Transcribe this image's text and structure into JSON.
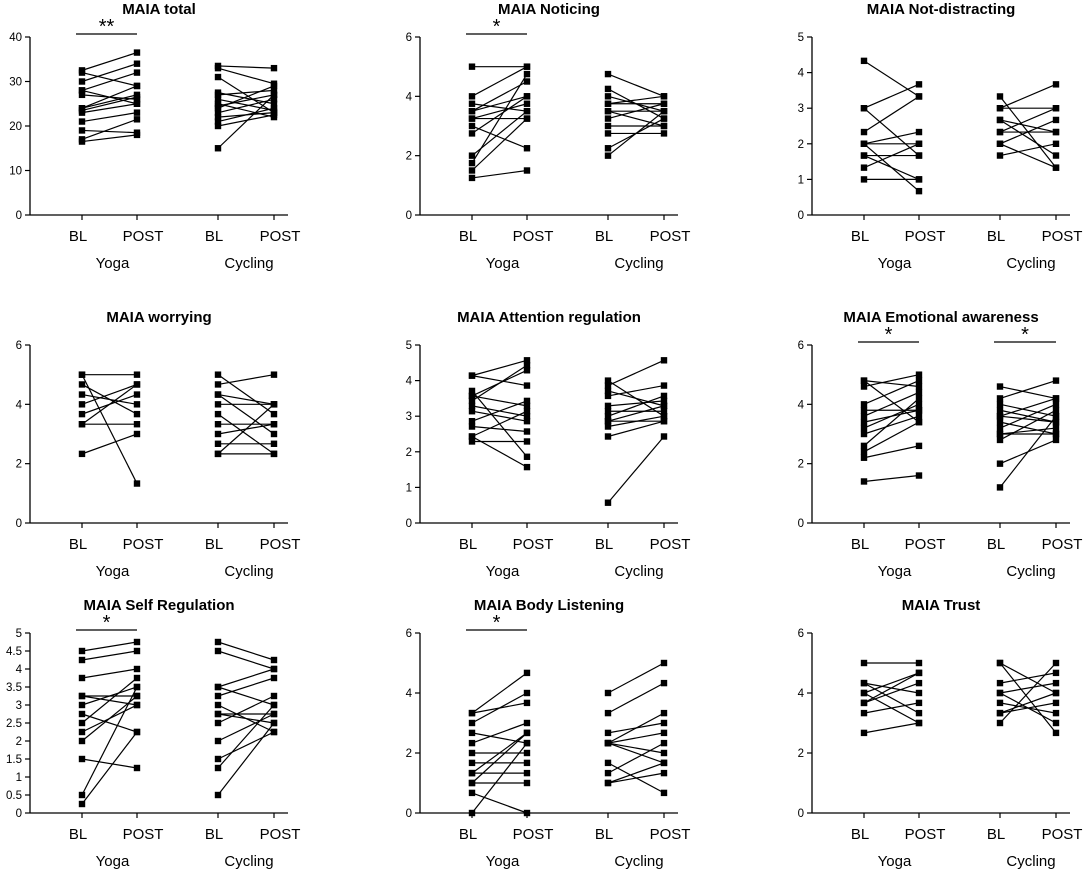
{
  "figure": {
    "description_free": true
  },
  "colors": {
    "ink": "#000000",
    "background": "#ffffff"
  },
  "chart_data": [
    {
      "type": "line",
      "title": "MAIA total",
      "ylim": [
        0,
        40
      ],
      "yticks": [
        0,
        10,
        20,
        30,
        40
      ],
      "groups": [
        "Yoga",
        "Cycling"
      ],
      "timepoints": [
        "BL",
        "POST"
      ],
      "pairs": [
        [
          [
            16.5,
            18
          ],
          [
            17,
            21.5
          ],
          [
            19,
            18.5
          ],
          [
            21,
            23
          ],
          [
            23,
            25
          ],
          [
            24,
            27
          ],
          [
            24,
            29
          ],
          [
            27,
            26
          ],
          [
            28,
            32
          ],
          [
            28,
            25
          ],
          [
            30,
            34
          ],
          [
            32.5,
            36.5
          ],
          [
            32,
            29
          ],
          [
            23.5,
            26.5
          ]
        ],
        [
          [
            15,
            27
          ],
          [
            20,
            22.5
          ],
          [
            21,
            24
          ],
          [
            22,
            23
          ],
          [
            23,
            26
          ],
          [
            24,
            29
          ],
          [
            24.5,
            27
          ],
          [
            26,
            23.5
          ],
          [
            27,
            28
          ],
          [
            27.5,
            25
          ],
          [
            31,
            23
          ],
          [
            33.5,
            33
          ],
          [
            33,
            29.5
          ],
          [
            25,
            22
          ]
        ]
      ],
      "significance": [
        {
          "group": "Yoga",
          "label": "**"
        }
      ]
    },
    {
      "type": "line",
      "title": "MAIA Noticing",
      "ylim": [
        0,
        6
      ],
      "yticks": [
        0,
        2,
        4,
        6
      ],
      "groups": [
        "Yoga",
        "Cycling"
      ],
      "timepoints": [
        "BL",
        "POST"
      ],
      "pairs": [
        [
          [
            1.25,
            1.5
          ],
          [
            1.5,
            3.25
          ],
          [
            1.75,
            4.75
          ],
          [
            2,
            3.5
          ],
          [
            2.75,
            4
          ],
          [
            3,
            2.25
          ],
          [
            3.25,
            3.75
          ],
          [
            3.5,
            4.5
          ],
          [
            3.75,
            3.5
          ],
          [
            4,
            5
          ],
          [
            5,
            5
          ],
          [
            3.25,
            3.25
          ],
          [
            3.5,
            4
          ]
        ],
        [
          [
            2,
            3.5
          ],
          [
            2.25,
            3.25
          ],
          [
            2.75,
            2.75
          ],
          [
            3.25,
            3.75
          ],
          [
            3.5,
            3
          ],
          [
            3.75,
            4
          ],
          [
            4,
            3.5
          ],
          [
            4.25,
            3.25
          ],
          [
            4.75,
            4
          ],
          [
            3.5,
            3.5
          ],
          [
            3,
            3
          ],
          [
            3.75,
            3.75
          ]
        ]
      ],
      "significance": [
        {
          "group": "Yoga",
          "label": "*"
        }
      ]
    },
    {
      "type": "line",
      "title": "MAIA Not-distracting",
      "ylim": [
        0,
        5
      ],
      "yticks": [
        0,
        1,
        2,
        3,
        4,
        5
      ],
      "groups": [
        "Yoga",
        "Cycling"
      ],
      "timepoints": [
        "BL",
        "POST"
      ],
      "pairs": [
        [
          [
            1,
            1
          ],
          [
            1.33,
            2
          ],
          [
            1.67,
            1.67
          ],
          [
            2,
            2.33
          ],
          [
            2,
            0.67
          ],
          [
            2.33,
            3.33
          ],
          [
            3,
            3.67
          ],
          [
            3,
            1.67
          ],
          [
            4.33,
            3.33
          ],
          [
            1.67,
            1
          ],
          [
            2,
            2
          ]
        ],
        [
          [
            1.67,
            2
          ],
          [
            2,
            1.33
          ],
          [
            2,
            2.67
          ],
          [
            2.33,
            3
          ],
          [
            2.67,
            2.33
          ],
          [
            2.67,
            1.67
          ],
          [
            3,
            3.67
          ],
          [
            3.33,
            1.33
          ],
          [
            3,
            3
          ],
          [
            2.33,
            2.33
          ]
        ]
      ],
      "significance": []
    },
    {
      "type": "line",
      "title": "MAIA worrying",
      "ylim": [
        0,
        6
      ],
      "yticks": [
        0,
        2,
        4,
        6
      ],
      "groups": [
        "Yoga",
        "Cycling"
      ],
      "timepoints": [
        "BL",
        "POST"
      ],
      "pairs": [
        [
          [
            2.33,
            3
          ],
          [
            3.33,
            3.33
          ],
          [
            3.67,
            4.33
          ],
          [
            4,
            4.67
          ],
          [
            4.33,
            4
          ],
          [
            5,
            1.33
          ],
          [
            5,
            5
          ],
          [
            4.67,
            3.67
          ],
          [
            3.33,
            4.67
          ]
        ],
        [
          [
            2.33,
            2.33
          ],
          [
            2.33,
            4
          ],
          [
            2.67,
            2.67
          ],
          [
            3,
            3.33
          ],
          [
            3.33,
            3.33
          ],
          [
            3.67,
            2.33
          ],
          [
            4,
            4
          ],
          [
            4.33,
            3
          ],
          [
            4.67,
            5
          ],
          [
            5,
            3.67
          ],
          [
            4.33,
            4
          ]
        ]
      ],
      "significance": []
    },
    {
      "type": "line",
      "title": "MAIA Attention regulation",
      "ylim": [
        0,
        5
      ],
      "yticks": [
        0,
        1,
        2,
        3,
        4,
        5
      ],
      "groups": [
        "Yoga",
        "Cycling"
      ],
      "timepoints": [
        "BL",
        "POST"
      ],
      "pairs": [
        [
          [
            2.29,
            2.29
          ],
          [
            2.43,
            1.57
          ],
          [
            2.71,
            2.57
          ],
          [
            2.86,
            3.43
          ],
          [
            3.14,
            2.86
          ],
          [
            3.29,
            3
          ],
          [
            3.43,
            4.43
          ],
          [
            3.57,
            3.29
          ],
          [
            3.71,
            1.86
          ],
          [
            4.14,
            4.57
          ],
          [
            4.14,
            3.86
          ],
          [
            2.43,
            3.14
          ],
          [
            3.57,
            4.29
          ]
        ],
        [
          [
            0.57,
            2.43
          ],
          [
            2.43,
            2.86
          ],
          [
            2.71,
            3
          ],
          [
            2.86,
            3.29
          ],
          [
            3,
            3.57
          ],
          [
            3.14,
            3.14
          ],
          [
            3.29,
            3.43
          ],
          [
            3.57,
            3.86
          ],
          [
            3.86,
            4.57
          ],
          [
            4,
            3
          ],
          [
            3.71,
            3.29
          ],
          [
            2.86,
            2.86
          ]
        ]
      ],
      "significance": []
    },
    {
      "type": "line",
      "title": "MAIA Emotional awareness",
      "ylim": [
        0,
        6
      ],
      "yticks": [
        0,
        2,
        4,
        6
      ],
      "groups": [
        "Yoga",
        "Cycling"
      ],
      "timepoints": [
        "BL",
        "POST"
      ],
      "pairs": [
        [
          [
            1.4,
            1.6
          ],
          [
            2.2,
            2.6
          ],
          [
            2.4,
            3.4
          ],
          [
            2.6,
            4.2
          ],
          [
            3,
            3.6
          ],
          [
            3.4,
            3.8
          ],
          [
            3.6,
            4.4
          ],
          [
            3.8,
            3.8
          ],
          [
            4,
            4.8
          ],
          [
            4.6,
            5
          ],
          [
            4.8,
            4.6
          ],
          [
            4.8,
            3.4
          ],
          [
            3.2,
            4
          ]
        ],
        [
          [
            1.2,
            3.6
          ],
          [
            2,
            2.8
          ],
          [
            2.8,
            3.8
          ],
          [
            3,
            3.2
          ],
          [
            3.2,
            4
          ],
          [
            3.4,
            3
          ],
          [
            3.6,
            4.2
          ],
          [
            3.8,
            3.4
          ],
          [
            4,
            3.6
          ],
          [
            4.2,
            4.8
          ],
          [
            4.6,
            4.2
          ],
          [
            3.6,
            3.4
          ],
          [
            3,
            3
          ]
        ]
      ],
      "significance": [
        {
          "group": "Yoga",
          "label": "*"
        },
        {
          "group": "Cycling",
          "label": "*"
        }
      ]
    },
    {
      "type": "line",
      "title": "MAIA Self Regulation",
      "ylim": [
        0,
        5
      ],
      "yticks": [
        0,
        0.5,
        1,
        1.5,
        2,
        2.5,
        3,
        3.5,
        4,
        4.5,
        5
      ],
      "groups": [
        "Yoga",
        "Cycling"
      ],
      "timepoints": [
        "BL",
        "POST"
      ],
      "pairs": [
        [
          [
            0.25,
            2.25
          ],
          [
            0.5,
            3.5
          ],
          [
            1.5,
            1.25
          ],
          [
            2,
            3.25
          ],
          [
            2.25,
            3
          ],
          [
            2.5,
            3.75
          ],
          [
            2.75,
            2.25
          ],
          [
            3,
            3.5
          ],
          [
            3.25,
            3.25
          ],
          [
            3.75,
            4
          ],
          [
            4.25,
            4.5
          ],
          [
            4.5,
            4.75
          ],
          [
            3.25,
            3
          ]
        ],
        [
          [
            0.5,
            2.5
          ],
          [
            1.25,
            3
          ],
          [
            1.5,
            2.25
          ],
          [
            2,
            2.75
          ],
          [
            2.5,
            3.25
          ],
          [
            2.75,
            2.5
          ],
          [
            3,
            2.25
          ],
          [
            3.25,
            3.75
          ],
          [
            3.5,
            4
          ],
          [
            3.5,
            3
          ],
          [
            4.5,
            4
          ],
          [
            4.75,
            4.25
          ],
          [
            2.75,
            2.75
          ]
        ]
      ],
      "significance": [
        {
          "group": "Yoga",
          "label": "*"
        }
      ]
    },
    {
      "type": "line",
      "title": "MAIA Body Listening",
      "ylim": [
        0,
        6
      ],
      "yticks": [
        0,
        2,
        4,
        6
      ],
      "groups": [
        "Yoga",
        "Cycling"
      ],
      "timepoints": [
        "BL",
        "POST"
      ],
      "pairs": [
        [
          [
            0,
            2.33
          ],
          [
            0.67,
            0
          ],
          [
            1,
            1
          ],
          [
            1,
            2.67
          ],
          [
            1.33,
            1.33
          ],
          [
            1.67,
            1.67
          ],
          [
            2,
            2
          ],
          [
            2.33,
            3
          ],
          [
            2.67,
            2.33
          ],
          [
            3.33,
            4.67
          ],
          [
            3.33,
            3.67
          ],
          [
            3,
            4
          ],
          [
            1.33,
            2.67
          ]
        ],
        [
          [
            1,
            1.33
          ],
          [
            1.33,
            2.33
          ],
          [
            1.67,
            0.67
          ],
          [
            2.33,
            3.33
          ],
          [
            2.33,
            2
          ],
          [
            2.33,
            1.67
          ],
          [
            2.67,
            3
          ],
          [
            3.33,
            4.33
          ],
          [
            4,
            5
          ],
          [
            2.33,
            2.67
          ],
          [
            1,
            1.67
          ]
        ]
      ],
      "significance": [
        {
          "group": "Yoga",
          "label": "*"
        }
      ]
    },
    {
      "type": "line",
      "title": "MAIA Trust",
      "ylim": [
        0,
        6
      ],
      "yticks": [
        0,
        2,
        4,
        6
      ],
      "groups": [
        "Yoga",
        "Cycling"
      ],
      "timepoints": [
        "BL",
        "POST"
      ],
      "pairs": [
        [
          [
            2.67,
            3
          ],
          [
            3.33,
            3.67
          ],
          [
            3.67,
            4.33
          ],
          [
            4,
            4.67
          ],
          [
            4.33,
            4
          ],
          [
            5,
            5
          ],
          [
            4.33,
            3.33
          ],
          [
            3.67,
            4.67
          ],
          [
            4,
            3
          ]
        ],
        [
          [
            3,
            5
          ],
          [
            3.33,
            4
          ],
          [
            3.67,
            3.33
          ],
          [
            4,
            3
          ],
          [
            4.33,
            4.67
          ],
          [
            5,
            2.67
          ],
          [
            5,
            4
          ],
          [
            4,
            4.33
          ],
          [
            3.33,
            3.67
          ]
        ]
      ],
      "significance": []
    }
  ]
}
